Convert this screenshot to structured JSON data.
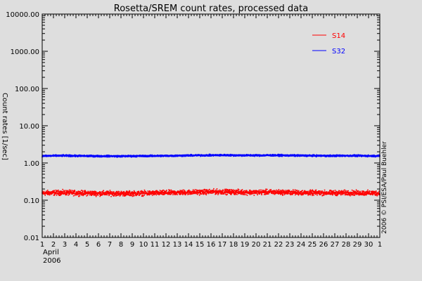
{
  "chart_data": {
    "type": "scatter",
    "title": "Rosetta/SREM count rates, processed data",
    "ylabel": "Count rates [1/sec]",
    "y_scale": "log",
    "ylim": [
      0.01,
      10000
    ],
    "y_ticks": [
      {
        "value": 10000,
        "label": "10000.00"
      },
      {
        "value": 1000,
        "label": "1000.00"
      },
      {
        "value": 100,
        "label": "100.00"
      },
      {
        "value": 10,
        "label": "10.00"
      },
      {
        "value": 1,
        "label": "1.00"
      },
      {
        "value": 0.1,
        "label": "0.10"
      },
      {
        "value": 0.01,
        "label": "0.01"
      }
    ],
    "xlim": [
      1,
      31
    ],
    "x_ticks": [
      {
        "value": 1,
        "label": "1"
      },
      {
        "value": 2,
        "label": "2"
      },
      {
        "value": 3,
        "label": "3"
      },
      {
        "value": 4,
        "label": "4"
      },
      {
        "value": 5,
        "label": "5"
      },
      {
        "value": 6,
        "label": "6"
      },
      {
        "value": 7,
        "label": "7"
      },
      {
        "value": 8,
        "label": "8"
      },
      {
        "value": 9,
        "label": "9"
      },
      {
        "value": 10,
        "label": "10"
      },
      {
        "value": 11,
        "label": "11"
      },
      {
        "value": 12,
        "label": "12"
      },
      {
        "value": 13,
        "label": "13"
      },
      {
        "value": 14,
        "label": "14"
      },
      {
        "value": 15,
        "label": "15"
      },
      {
        "value": 16,
        "label": "16"
      },
      {
        "value": 17,
        "label": "17"
      },
      {
        "value": 18,
        "label": "18"
      },
      {
        "value": 19,
        "label": "19"
      },
      {
        "value": 20,
        "label": "20"
      },
      {
        "value": 21,
        "label": "21"
      },
      {
        "value": 22,
        "label": "22"
      },
      {
        "value": 23,
        "label": "23"
      },
      {
        "value": 24,
        "label": "24"
      },
      {
        "value": 25,
        "label": "25"
      },
      {
        "value": 26,
        "label": "26"
      },
      {
        "value": 27,
        "label": "27"
      },
      {
        "value": 28,
        "label": "28"
      },
      {
        "value": 29,
        "label": "29"
      },
      {
        "value": 30,
        "label": "30"
      },
      {
        "value": 31,
        "label": "1"
      }
    ],
    "x_month_label": "April",
    "x_year_label": "2006",
    "credit": "2006 © PSI/ESA/Paul Buehler",
    "grid": false,
    "legend_position": "top-right",
    "series": [
      {
        "name": "S14",
        "color": "#ff0000",
        "x": [
          1,
          2,
          3,
          4,
          5,
          6,
          7,
          8,
          9,
          10,
          11,
          12,
          13,
          14,
          15,
          16,
          17,
          18,
          19,
          20,
          21,
          22,
          23,
          24,
          25,
          26,
          27,
          28,
          29,
          30,
          31
        ],
        "y": [
          0.155,
          0.158,
          0.16,
          0.156,
          0.155,
          0.152,
          0.153,
          0.151,
          0.152,
          0.154,
          0.155,
          0.158,
          0.16,
          0.163,
          0.165,
          0.168,
          0.169,
          0.166,
          0.164,
          0.163,
          0.165,
          0.164,
          0.162,
          0.16,
          0.158,
          0.157,
          0.157,
          0.158,
          0.157,
          0.156,
          0.155
        ],
        "spread_factor": 1.25
      },
      {
        "name": "S32",
        "color": "#0000ff",
        "x": [
          1,
          2,
          3,
          4,
          5,
          6,
          7,
          8,
          9,
          10,
          11,
          12,
          13,
          14,
          15,
          16,
          17,
          18,
          19,
          20,
          21,
          22,
          23,
          24,
          25,
          26,
          27,
          28,
          29,
          30,
          31
        ],
        "y": [
          1.55,
          1.56,
          1.57,
          1.55,
          1.54,
          1.53,
          1.53,
          1.52,
          1.53,
          1.54,
          1.55,
          1.56,
          1.57,
          1.59,
          1.6,
          1.61,
          1.62,
          1.61,
          1.6,
          1.6,
          1.61,
          1.6,
          1.59,
          1.58,
          1.57,
          1.56,
          1.56,
          1.57,
          1.56,
          1.55,
          1.55
        ],
        "spread_factor": 1.08
      }
    ]
  }
}
